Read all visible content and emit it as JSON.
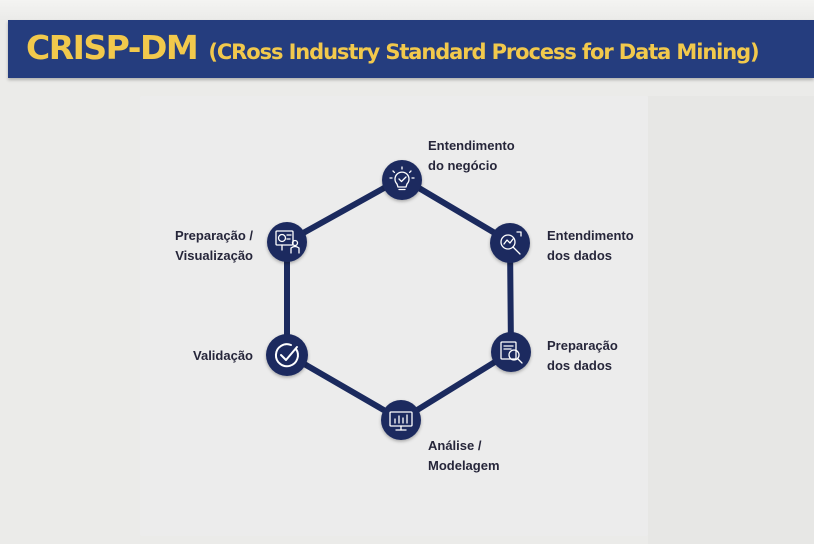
{
  "header": {
    "title_main": "CRISP-DM",
    "title_sub": "(CRoss Industry Standard Process for Data Mining)"
  },
  "colors": {
    "banner": "#253d7e",
    "title": "#f2c94c",
    "ring": "#1b2a5e",
    "node": "#1b2a5e",
    "text": "#26263a"
  },
  "cycle": {
    "stages": [
      {
        "id": "business",
        "label_lines": [
          "Entendimento",
          "do negócio"
        ],
        "icon": "lightbulb-check-icon"
      },
      {
        "id": "data-understanding",
        "label_lines": [
          "Entendimento",
          "dos dados"
        ],
        "icon": "magnifier-chart-icon"
      },
      {
        "id": "data-prep",
        "label_lines": [
          "Preparação",
          "dos dados"
        ],
        "icon": "document-magnifier-icon"
      },
      {
        "id": "modeling",
        "label_lines": [
          "Análise /",
          "Modelagem"
        ],
        "icon": "monitor-chart-icon"
      },
      {
        "id": "validation",
        "label_lines": [
          "Validação"
        ],
        "icon": "checkmark-circle-icon"
      },
      {
        "id": "visualization",
        "label_lines": [
          "Preparação /",
          "Visualização"
        ],
        "icon": "presentation-board-icon"
      }
    ]
  }
}
